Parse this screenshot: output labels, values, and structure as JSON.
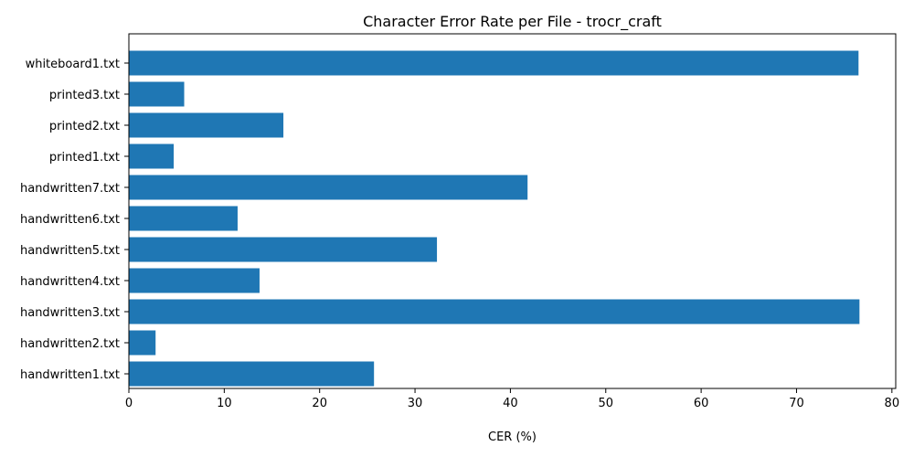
{
  "chart_data": {
    "type": "bar",
    "orientation": "horizontal",
    "title": "Character Error Rate per File - trocr_craft",
    "xlabel": "CER (%)",
    "ylabel": "",
    "categories": [
      "handwritten1.txt",
      "handwritten2.txt",
      "handwritten3.txt",
      "handwritten4.txt",
      "handwritten5.txt",
      "handwritten6.txt",
      "handwritten7.txt",
      "printed1.txt",
      "printed2.txt",
      "printed3.txt",
      "whiteboard1.txt"
    ],
    "values": [
      25.7,
      2.8,
      76.6,
      13.7,
      32.3,
      11.4,
      41.8,
      4.7,
      16.2,
      5.8,
      76.5
    ],
    "xlim": [
      0,
      80.4
    ],
    "xticks": [
      0,
      10,
      20,
      30,
      40,
      50,
      60,
      70,
      80
    ],
    "bar_color": "#1f77b4",
    "grid": false
  }
}
